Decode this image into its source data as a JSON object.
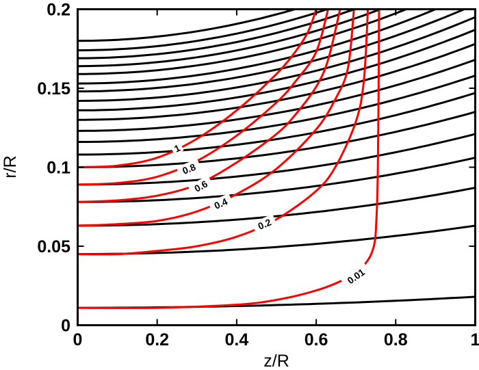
{
  "chart_data": {
    "type": "line",
    "title": "",
    "xlabel": "z/R",
    "ylabel": "r/R",
    "xlim": [
      0,
      1
    ],
    "ylim": [
      0,
      0.2
    ],
    "xticks": [
      "0",
      "0.2",
      "0.4",
      "0.6",
      "0.8",
      "1"
    ],
    "yticks": [
      "0",
      "0.05",
      "0.1",
      "0.15",
      "0.2"
    ],
    "grid": false,
    "legend": "none",
    "colors": {
      "black_series": "#000000",
      "red_series": "#ff0000"
    },
    "black_lines": [
      {
        "r0": 0.011,
        "r1": 0.018
      },
      {
        "r0": 0.045,
        "r1": 0.063
      },
      {
        "r0": 0.063,
        "r1": 0.087
      },
      {
        "r0": 0.078,
        "r1": 0.106
      },
      {
        "r0": 0.089,
        "r1": 0.121
      },
      {
        "r0": 0.1,
        "r1": 0.135
      },
      {
        "r0": 0.108,
        "r1": 0.147
      },
      {
        "r0": 0.116,
        "r1": 0.158
      },
      {
        "r0": 0.123,
        "r1": 0.168
      },
      {
        "r0": 0.13,
        "r1": 0.178
      },
      {
        "r0": 0.136,
        "r1": 0.187
      },
      {
        "r0": 0.142,
        "r1": 0.195
      },
      {
        "r0": 0.148,
        "r1": 0.203
      },
      {
        "r0": 0.153,
        "r1": 0.211
      },
      {
        "r0": 0.159,
        "r1": 0.219
      },
      {
        "r0": 0.164,
        "r1": 0.226
      },
      {
        "r0": 0.169,
        "r1": 0.233
      },
      {
        "r0": 0.174,
        "r1": 0.24
      },
      {
        "r0": 0.18,
        "r1": 0.247
      }
    ],
    "red_contours": [
      {
        "level": "1",
        "label_at": [
          0.25,
          0.112
        ],
        "points": [
          [
            0,
            0.1
          ],
          [
            0.1,
            0.101
          ],
          [
            0.2,
            0.106
          ],
          [
            0.3,
            0.118
          ],
          [
            0.4,
            0.136
          ],
          [
            0.5,
            0.159
          ],
          [
            0.55,
            0.174
          ],
          [
            0.58,
            0.186
          ],
          [
            0.6,
            0.2
          ]
        ]
      },
      {
        "level": "0.8",
        "label_at": [
          0.28,
          0.099
        ],
        "points": [
          [
            0,
            0.089
          ],
          [
            0.1,
            0.09
          ],
          [
            0.2,
            0.094
          ],
          [
            0.3,
            0.104
          ],
          [
            0.4,
            0.12
          ],
          [
            0.5,
            0.141
          ],
          [
            0.55,
            0.155
          ],
          [
            0.6,
            0.173
          ],
          [
            0.63,
            0.2
          ]
        ]
      },
      {
        "level": "0.6",
        "label_at": [
          0.31,
          0.088
        ],
        "points": [
          [
            0,
            0.078
          ],
          [
            0.1,
            0.079
          ],
          [
            0.2,
            0.082
          ],
          [
            0.3,
            0.089
          ],
          [
            0.4,
            0.103
          ],
          [
            0.5,
            0.121
          ],
          [
            0.55,
            0.134
          ],
          [
            0.6,
            0.151
          ],
          [
            0.63,
            0.168
          ],
          [
            0.66,
            0.2
          ]
        ]
      },
      {
        "level": "0.4",
        "label_at": [
          0.36,
          0.077
        ],
        "points": [
          [
            0,
            0.063
          ],
          [
            0.1,
            0.064
          ],
          [
            0.2,
            0.066
          ],
          [
            0.3,
            0.072
          ],
          [
            0.4,
            0.083
          ],
          [
            0.5,
            0.099
          ],
          [
            0.6,
            0.124
          ],
          [
            0.65,
            0.144
          ],
          [
            0.68,
            0.163
          ],
          [
            0.695,
            0.2
          ]
        ]
      },
      {
        "level": "0.2",
        "label_at": [
          0.47,
          0.064
        ],
        "points": [
          [
            0,
            0.045
          ],
          [
            0.1,
            0.045
          ],
          [
            0.2,
            0.047
          ],
          [
            0.3,
            0.05
          ],
          [
            0.4,
            0.056
          ],
          [
            0.5,
            0.067
          ],
          [
            0.6,
            0.085
          ],
          [
            0.65,
            0.101
          ],
          [
            0.7,
            0.129
          ],
          [
            0.72,
            0.155
          ],
          [
            0.73,
            0.2
          ]
        ]
      },
      {
        "level": "0.01",
        "label_at": [
          0.7,
          0.031
        ],
        "points": [
          [
            0,
            0.011
          ],
          [
            0.2,
            0.011
          ],
          [
            0.4,
            0.013
          ],
          [
            0.5,
            0.016
          ],
          [
            0.6,
            0.022
          ],
          [
            0.67,
            0.029
          ],
          [
            0.72,
            0.038
          ],
          [
            0.745,
            0.05
          ],
          [
            0.752,
            0.07
          ],
          [
            0.755,
            0.1
          ],
          [
            0.757,
            0.15
          ],
          [
            0.758,
            0.2
          ]
        ]
      }
    ]
  }
}
